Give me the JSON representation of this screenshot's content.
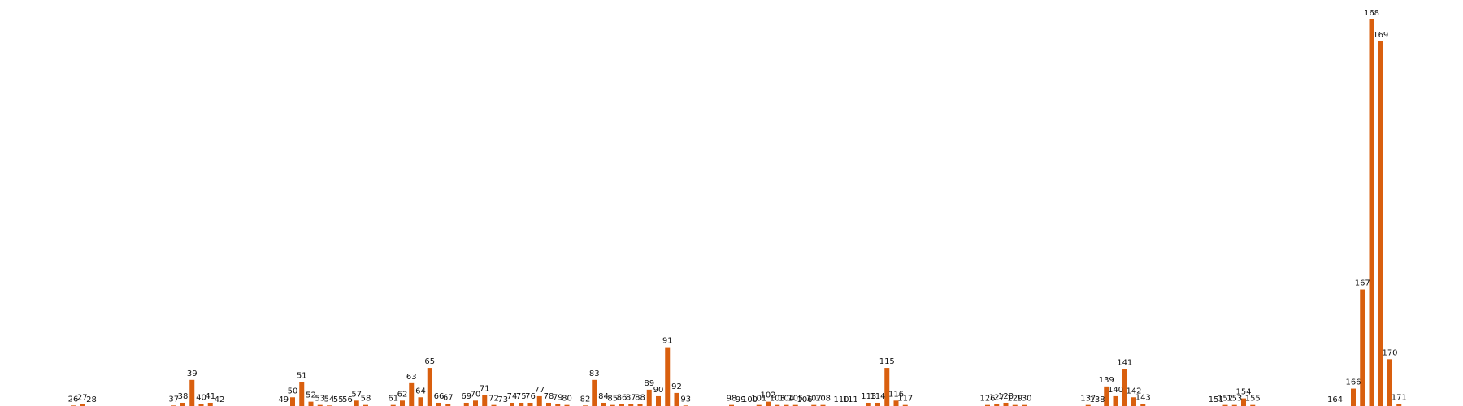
{
  "chart_data": {
    "type": "bar",
    "title": "",
    "xlabel": "",
    "ylabel": "",
    "ylim": [
      0,
      355
    ],
    "axes_visible": false,
    "grid": false,
    "bar_color": "#d95f0e",
    "label_color": "#111111",
    "x_range": [
      18,
      178
    ],
    "categories": [
      26,
      27,
      28,
      37,
      38,
      39,
      40,
      41,
      42,
      49,
      50,
      51,
      52,
      53,
      54,
      55,
      56,
      57,
      58,
      61,
      62,
      63,
      64,
      65,
      66,
      67,
      69,
      70,
      71,
      72,
      73,
      74,
      75,
      76,
      77,
      78,
      79,
      80,
      82,
      83,
      84,
      85,
      86,
      87,
      88,
      89,
      90,
      91,
      92,
      93,
      98,
      99,
      100,
      101,
      102,
      103,
      104,
      105,
      106,
      107,
      108,
      110,
      111,
      113,
      114,
      115,
      116,
      117,
      126,
      127,
      128,
      129,
      130,
      137,
      138,
      139,
      140,
      141,
      142,
      143,
      151,
      152,
      153,
      154,
      155,
      164,
      166,
      167,
      168,
      169,
      170,
      171
    ],
    "labels": [
      "26",
      "27",
      "28",
      "37",
      "38",
      "39",
      "40",
      "41",
      "42",
      "49",
      "50",
      "51",
      "52",
      "53",
      "54",
      "55",
      "56",
      "57",
      "58",
      "61",
      "62",
      "63",
      "64",
      "65",
      "66",
      "67",
      "69",
      "70",
      "71",
      "72",
      "73",
      "74",
      "75",
      "76",
      "77",
      "78",
      "79",
      "80",
      "82",
      "83",
      "84",
      "85",
      "86",
      "87",
      "88",
      "89",
      "90",
      "91",
      "92",
      "93",
      "98",
      "99",
      "100",
      "101",
      "102",
      "103",
      "104",
      "105",
      "106",
      "107",
      "108",
      "110",
      "111",
      "113",
      "114",
      "115",
      "116",
      "117",
      "126",
      "127",
      "128",
      "129",
      "130",
      "137",
      "138",
      "139",
      "140",
      "141",
      "142",
      "143",
      "151",
      "152",
      "153",
      "154",
      "155",
      "164",
      "166",
      "167",
      "168",
      "169",
      "170",
      "171"
    ],
    "values": [
      0.5,
      2,
      0,
      0.5,
      3,
      24,
      2,
      3,
      0,
      0,
      8,
      22,
      4,
      1,
      0.5,
      0,
      0,
      5,
      1,
      1,
      5,
      21,
      8,
      35,
      3,
      2,
      3,
      5,
      10,
      1,
      0,
      3,
      3,
      3,
      9,
      3,
      2,
      1,
      0.5,
      24,
      3,
      1,
      2,
      2,
      2,
      15,
      9,
      54,
      12,
      0.5,
      1,
      0,
      0,
      1,
      4,
      1,
      1,
      1,
      0,
      1,
      1,
      0,
      0,
      3,
      3,
      35,
      5,
      1,
      1,
      2,
      3,
      1,
      1,
      1,
      0,
      18,
      9,
      34,
      8,
      2,
      0,
      1,
      1,
      7,
      1,
      0,
      16,
      107,
      355,
      335,
      43,
      2
    ]
  }
}
